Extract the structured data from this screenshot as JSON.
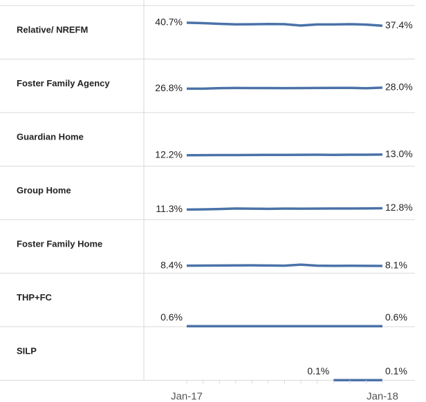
{
  "chart_data": {
    "type": "line",
    "categories": [
      "Jan-17",
      null,
      null,
      null,
      null,
      null,
      null,
      null,
      null,
      null,
      null,
      null,
      "Jan-18"
    ],
    "ylim": [
      0,
      60
    ],
    "color": "#4a72a8",
    "series": [
      {
        "name": "Relative/ NREFM",
        "values": [
          40.7,
          40.3,
          39.5,
          38.9,
          39.0,
          39.3,
          39.1,
          37.6,
          38.8,
          38.8,
          39.1,
          38.6,
          37.4
        ],
        "value_labels": [
          "40.7%",
          null,
          null,
          null,
          null,
          null,
          null,
          null,
          null,
          null,
          null,
          null,
          "37.4%"
        ]
      },
      {
        "name": "Foster Family Agency",
        "values": [
          26.8,
          26.8,
          27.4,
          27.6,
          27.5,
          27.5,
          27.4,
          27.5,
          27.6,
          27.7,
          27.7,
          27.3,
          28.0
        ],
        "value_labels": [
          "26.8%",
          null,
          null,
          null,
          null,
          null,
          null,
          null,
          null,
          null,
          null,
          null,
          "28.0%"
        ]
      },
      {
        "name": "Guardian Home",
        "values": [
          12.2,
          12.3,
          12.4,
          12.4,
          12.5,
          12.6,
          12.6,
          12.7,
          12.8,
          12.6,
          12.8,
          12.8,
          13.0
        ],
        "value_labels": [
          "12.2%",
          null,
          null,
          null,
          null,
          null,
          null,
          null,
          null,
          null,
          null,
          null,
          "13.0%"
        ]
      },
      {
        "name": "Group Home",
        "values": [
          11.3,
          11.5,
          11.9,
          12.5,
          12.3,
          12.1,
          12.4,
          12.3,
          12.4,
          12.5,
          12.5,
          12.6,
          12.8
        ],
        "value_labels": [
          "11.3%",
          null,
          null,
          null,
          null,
          null,
          null,
          null,
          null,
          null,
          null,
          null,
          "12.8%"
        ]
      },
      {
        "name": "Foster Family Home",
        "values": [
          8.4,
          8.5,
          8.6,
          8.7,
          8.8,
          8.6,
          8.4,
          9.6,
          8.4,
          8.2,
          8.3,
          8.2,
          8.1
        ],
        "value_labels": [
          "8.4%",
          null,
          null,
          null,
          null,
          null,
          null,
          null,
          null,
          null,
          null,
          null,
          "8.1%"
        ]
      },
      {
        "name": "THP+FC",
        "values": [
          0.6,
          0.6,
          0.6,
          0.6,
          0.6,
          0.6,
          0.6,
          0.6,
          0.6,
          0.6,
          0.6,
          0.6,
          0.6
        ],
        "value_labels": [
          "0.6%",
          null,
          null,
          null,
          null,
          null,
          null,
          null,
          null,
          null,
          null,
          null,
          "0.6%"
        ]
      },
      {
        "name": "SILP",
        "values": [
          null,
          null,
          null,
          null,
          null,
          null,
          null,
          null,
          null,
          0.1,
          0.1,
          0.1,
          0.1
        ],
        "value_labels": [
          null,
          null,
          null,
          null,
          null,
          null,
          null,
          null,
          null,
          "0.1%",
          null,
          null,
          "0.1%"
        ]
      }
    ]
  }
}
